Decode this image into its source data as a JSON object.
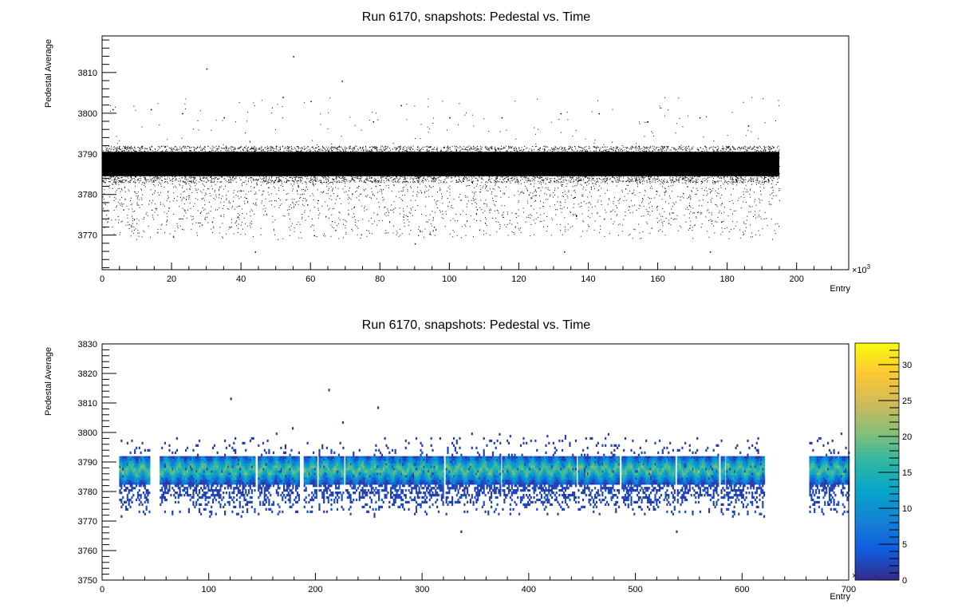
{
  "chart_data": [
    {
      "type": "scatter",
      "title": "Run 6170, snapshots: Pedestal vs. Time",
      "xlabel": "Entry",
      "ylabel": "Pedestal Average",
      "x_exponent_label": "×10",
      "x_exponent": "3",
      "xlim": [
        0,
        215
      ],
      "ylim": [
        3761.5,
        3819
      ],
      "x_ticks": [
        "0",
        "20",
        "40",
        "60",
        "80",
        "100",
        "120",
        "140",
        "160",
        "180",
        "200"
      ],
      "y_ticks": [
        "3770",
        "3780",
        "3790",
        "3800",
        "3810"
      ],
      "x_tick_values": [
        0,
        20,
        40,
        60,
        80,
        100,
        120,
        140,
        160,
        180,
        200
      ],
      "y_tick_values": [
        3770,
        3780,
        3790,
        3800,
        3810
      ],
      "data_x_range": [
        0,
        195
      ],
      "dense_band": [
        3783,
        3792
      ],
      "sparse_tail": [
        3769,
        3783
      ],
      "marker_color": "#000000",
      "outliers": [
        {
          "x": 30,
          "y": 3811
        },
        {
          "x": 55,
          "y": 3814
        },
        {
          "x": 69,
          "y": 3808
        },
        {
          "x": 52,
          "y": 3804
        },
        {
          "x": 60,
          "y": 3803
        },
        {
          "x": 86,
          "y": 3802
        },
        {
          "x": 14,
          "y": 3801
        },
        {
          "x": 3,
          "y": 3801
        },
        {
          "x": 35,
          "y": 3799
        },
        {
          "x": 23,
          "y": 3800
        },
        {
          "x": 78,
          "y": 3798
        },
        {
          "x": 100,
          "y": 3799
        },
        {
          "x": 115,
          "y": 3799
        },
        {
          "x": 132,
          "y": 3800
        },
        {
          "x": 143,
          "y": 3800
        },
        {
          "x": 157,
          "y": 3798
        },
        {
          "x": 172,
          "y": 3799
        },
        {
          "x": 186,
          "y": 3797
        },
        {
          "x": 44,
          "y": 3766
        },
        {
          "x": 133,
          "y": 3766
        },
        {
          "x": 175,
          "y": 3766
        },
        {
          "x": 90,
          "y": 3768
        },
        {
          "x": 61,
          "y": 3770
        }
      ]
    },
    {
      "type": "heatmap",
      "title": "Run 6170, snapshots: Pedestal vs. Time",
      "xlabel": "Entry",
      "ylabel": "Pedestal Average",
      "x_exponent_label": "×10",
      "x_exponent": "3",
      "xlim": [
        0,
        700
      ],
      "ylim": [
        3750,
        3830
      ],
      "x_ticks": [
        "0",
        "100",
        "200",
        "300",
        "400",
        "500",
        "600",
        "700"
      ],
      "y_ticks": [
        "3750",
        "3760",
        "3770",
        "3780",
        "3790",
        "3800",
        "3810",
        "3820",
        "3830"
      ],
      "x_tick_values": [
        0,
        100,
        200,
        300,
        400,
        500,
        600,
        700
      ],
      "y_tick_values": [
        3750,
        3760,
        3770,
        3780,
        3790,
        3800,
        3810,
        3820,
        3830
      ],
      "z_ticks": [
        "0",
        "5",
        "10",
        "15",
        "20",
        "25",
        "30"
      ],
      "z_tick_values": [
        0,
        5,
        10,
        15,
        20,
        25,
        30
      ],
      "zlim": [
        0,
        33
      ],
      "colormap": [
        "#352a87",
        "#0f5cdd",
        "#1481d6",
        "#06a4ca",
        "#2eb7a4",
        "#87bf77",
        "#d1bb59",
        "#fec832",
        "#f9fb0e"
      ],
      "data_segments": [
        [
          16,
          37
        ],
        [
          38,
          44
        ],
        [
          54,
          91
        ],
        [
          92,
          143
        ],
        [
          146,
          185
        ],
        [
          189,
          201
        ],
        [
          203,
          226
        ],
        [
          228,
          320
        ],
        [
          322,
          338
        ],
        [
          339,
          373
        ],
        [
          375,
          392
        ],
        [
          393,
          444
        ],
        [
          446,
          485
        ],
        [
          487,
          537
        ],
        [
          539,
          578
        ],
        [
          580,
          583
        ],
        [
          585,
          620
        ],
        [
          663,
          700
        ]
      ],
      "core_band": [
        3782,
        3792
      ],
      "outliers": [
        {
          "x": 120,
          "y": 3811
        },
        {
          "x": 212,
          "y": 3814
        },
        {
          "x": 258,
          "y": 3808
        },
        {
          "x": 225,
          "y": 3803
        },
        {
          "x": 178,
          "y": 3801
        },
        {
          "x": 336,
          "y": 3766
        },
        {
          "x": 538,
          "y": 3766
        },
        {
          "x": 372,
          "y": 3799
        },
        {
          "x": 474,
          "y": 3799
        }
      ]
    }
  ]
}
